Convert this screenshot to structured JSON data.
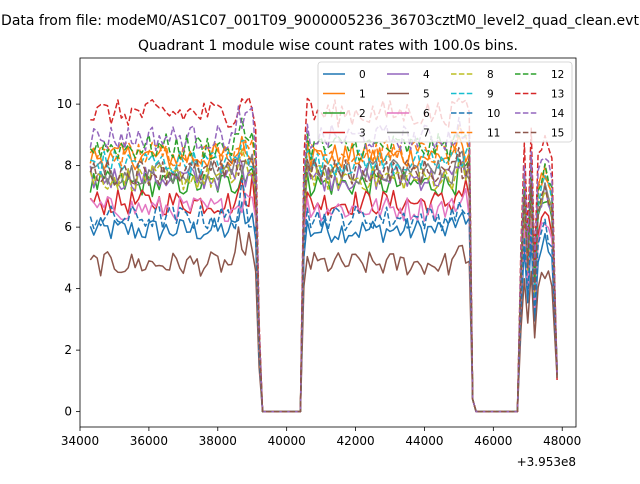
{
  "chart_data": {
    "type": "line",
    "suptitle": "Data from file: modeM0/AS1C07_001T09_9000005236_36703cztM0_level2_quad_clean.evt",
    "title": "Quadrant 1 module wise count rates with 100.0s bins.",
    "xlabel": "",
    "ylabel": "",
    "x_offset_label": "+3.953e8",
    "xlim": [
      34000,
      48400
    ],
    "ylim": [
      -0.5,
      11.5
    ],
    "x_ticks": [
      34000,
      36000,
      38000,
      40000,
      42000,
      44000,
      46000,
      48000
    ],
    "x_tick_labels": [
      "34000",
      "36000",
      "38000",
      "40000",
      "42000",
      "44000",
      "46000",
      "48000"
    ],
    "y_ticks": [
      0,
      2,
      4,
      6,
      8,
      10
    ],
    "y_tick_labels": [
      "0",
      "2",
      "4",
      "6",
      "8",
      "10"
    ],
    "grid": false,
    "legend_position": "top-right",
    "segments": [
      {
        "start": 34300,
        "end": 39000,
        "step": 100
      },
      {
        "start": 40400,
        "end": 45500,
        "step": 100
      },
      {
        "start": 46800,
        "end": 47900,
        "step": 100
      }
    ],
    "gaps": [
      {
        "start": 39300,
        "end": 40500,
        "value": 0
      },
      {
        "start": 45500,
        "end": 46800,
        "value": 0
      }
    ],
    "series": [
      {
        "name": "0",
        "color": "#1f77b4",
        "dash": "solid",
        "level": 5.9
      },
      {
        "name": "1",
        "color": "#ff7f0e",
        "dash": "solid",
        "level": 8.3
      },
      {
        "name": "2",
        "color": "#2ca02c",
        "dash": "solid",
        "level": 7.4
      },
      {
        "name": "3",
        "color": "#d62728",
        "dash": "solid",
        "level": 6.8
      },
      {
        "name": "4",
        "color": "#9467bd",
        "dash": "solid",
        "level": 7.6
      },
      {
        "name": "5",
        "color": "#8c564b",
        "dash": "solid",
        "level": 4.8
      },
      {
        "name": "6",
        "color": "#e377c2",
        "dash": "solid",
        "level": 6.6
      },
      {
        "name": "7",
        "color": "#7f7f7f",
        "dash": "solid",
        "level": 7.8
      },
      {
        "name": "8",
        "color": "#bcbd22",
        "dash": "dashed",
        "level": 7.6
      },
      {
        "name": "9",
        "color": "#17becf",
        "dash": "dashed",
        "level": 8.1
      },
      {
        "name": "10",
        "color": "#1f77b4",
        "dash": "dashed",
        "level": 6.3
      },
      {
        "name": "11",
        "color": "#ff7f0e",
        "dash": "dashed",
        "level": 8.4
      },
      {
        "name": "12",
        "color": "#2ca02c",
        "dash": "dashed",
        "level": 8.6
      },
      {
        "name": "13",
        "color": "#d62728",
        "dash": "dashed",
        "level": 9.7
      },
      {
        "name": "14",
        "color": "#9467bd",
        "dash": "dashed",
        "level": 8.9
      },
      {
        "name": "15",
        "color": "#8c564b",
        "dash": "dashed",
        "level": 7.8
      }
    ]
  }
}
